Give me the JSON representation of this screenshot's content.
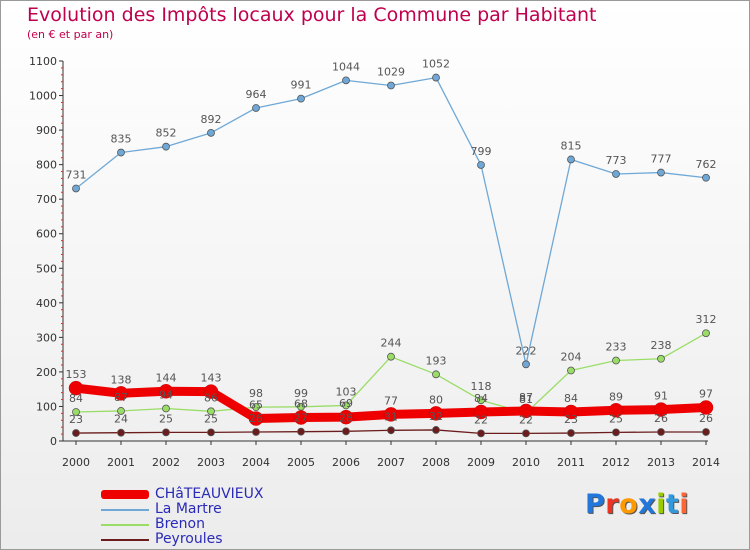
{
  "title": "Evolution des Impôts locaux pour la Commune par Habitant",
  "subtitle": "(en € et par an)",
  "brand": {
    "text": "Proxiti",
    "colors": [
      "#2277dd",
      "#ee3322",
      "#ff9900",
      "#2277dd",
      "#99cc00",
      "#3399dd",
      "#ff6633"
    ]
  },
  "chart_data": {
    "type": "line",
    "title": "Evolution des Impôts locaux pour la Commune par Habitant",
    "subtitle": "(en € et par an)",
    "xlabel": "",
    "ylabel": "",
    "x": [
      "2000",
      "2001",
      "2002",
      "2003",
      "2004",
      "2005",
      "2006",
      "2007",
      "2008",
      "2009",
      "2010",
      "2011",
      "2012",
      "2013",
      "2014"
    ],
    "ylim": [
      0,
      1100
    ],
    "yticks": [
      0,
      100,
      200,
      300,
      400,
      500,
      600,
      700,
      800,
      900,
      1000,
      1100
    ],
    "grid": false,
    "legend_position": "bottom-left",
    "series": [
      {
        "name": "CHâTEAUVIEUX",
        "color": "#ee0000",
        "values": [
          153,
          138,
          144,
          143,
          65,
          68,
          69,
          77,
          80,
          84,
          87,
          84,
          89,
          91,
          97
        ],
        "labels": [
          "153",
          "138",
          "144",
          "143",
          "65",
          "68",
          "69",
          "77",
          "80",
          "84",
          "87",
          "84",
          "89",
          "91",
          "97"
        ]
      },
      {
        "name": "La Martre",
        "color": "#6fa8d6",
        "values": [
          731,
          835,
          852,
          892,
          964,
          991,
          1044,
          1029,
          1052,
          799,
          222,
          815,
          773,
          777,
          762
        ],
        "labels": [
          "731",
          "835",
          "852",
          "892",
          "964",
          "991",
          "1044",
          "1029",
          "1052",
          "799",
          "222",
          "815",
          "773",
          "777",
          "762"
        ]
      },
      {
        "name": "Brenon",
        "color": "#99dd66",
        "values": [
          84,
          87,
          94,
          86,
          98,
          99,
          103,
          244,
          193,
          118,
          81,
          204,
          233,
          238,
          312
        ],
        "labels": [
          "84",
          "87",
          "94",
          "86",
          "98",
          "99",
          "103",
          "244",
          "193",
          "118",
          "81",
          "204",
          "233",
          "238",
          "312"
        ]
      },
      {
        "name": "Peyroules",
        "color": "#6b1c1c",
        "values": [
          23,
          24,
          25,
          25,
          26,
          27,
          28,
          31,
          32,
          22,
          22,
          23,
          25,
          26,
          26
        ],
        "labels": [
          "23",
          "24",
          "25",
          "25",
          "26",
          "27",
          "28",
          "31",
          "32",
          "22",
          "22",
          "23",
          "25",
          "26",
          "26"
        ]
      }
    ]
  }
}
